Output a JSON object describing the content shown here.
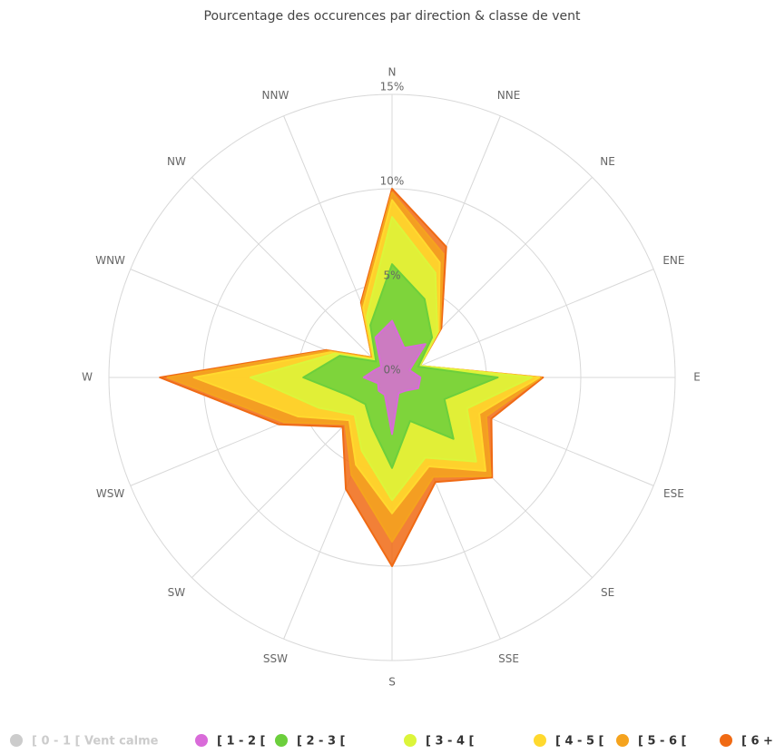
{
  "chart_data": {
    "type": "windrose",
    "title": "Pourcentage des occurences par direction & classe de vent",
    "categories": [
      "N",
      "NNE",
      "NE",
      "ENE",
      "E",
      "ESE",
      "SE",
      "SSE",
      "S",
      "SSW",
      "SW",
      "WSW",
      "W",
      "WNW",
      "NW",
      "NNW"
    ],
    "ylim": [
      0,
      15
    ],
    "yticks": [
      {
        "value": 0,
        "label": "0%"
      },
      {
        "value": 5,
        "label": "5%"
      },
      {
        "value": 10,
        "label": "10%"
      },
      {
        "value": 15,
        "label": "15%"
      }
    ],
    "stacked": true,
    "series": [
      {
        "name": "[ 0 - 1 [ Vent calme",
        "color": "#cccccc",
        "visible": false
      },
      {
        "name": "[ 1 - 2 [",
        "color": "#d96bd9",
        "values": [
          3,
          1.7,
          2.5,
          1,
          1.5,
          1.5,
          1,
          0.9,
          3,
          1,
          1,
          0.8,
          1.5,
          1,
          0.8,
          2.3
        ]
      },
      {
        "name": "[ 2 - 3 [",
        "color": "#6ccf3c",
        "values": [
          3,
          2.8,
          0.5,
          0.5,
          4.1,
          1.5,
          3.6,
          1.6,
          1.8,
          1.8,
          1,
          1.7,
          3.2,
          2,
          0.4,
          0.7
        ]
      },
      {
        "name": "[ 3 - 4 [",
        "color": "#dcf53a",
        "values": [
          2.5,
          1.5,
          0.4,
          0.1,
          1.8,
          1.3,
          1.7,
          2.1,
          1.7,
          1.4,
          0.8,
          1.7,
          2.8,
          0.3,
          0.1,
          0.5
        ]
      },
      {
        "name": "[ 4 - 5 [",
        "color": "#ffd92e",
        "values": [
          0.9,
          0.6,
          0.1,
          0,
          0.4,
          0.7,
          0.7,
          0.5,
          0.7,
          0.8,
          0.4,
          1.2,
          3,
          0.2,
          0.1,
          0.5
        ]
      },
      {
        "name": "[ 5 - 6 [",
        "color": "#f5a31e",
        "values": [
          0.4,
          0.5,
          0.1,
          0,
          0.1,
          0.4,
          0.4,
          0.6,
          1.5,
          0.6,
          0.3,
          0.8,
          1.4,
          0.2,
          0.1,
          0.2
        ]
      },
      {
        "name": "[ 6 +",
        "color": "#f06a14",
        "values": [
          0.2,
          0.4,
          0.1,
          0,
          0.1,
          0.3,
          0.1,
          0.3,
          1.3,
          0.8,
          0.2,
          0.3,
          0.4,
          0.1,
          0,
          0.1
        ]
      }
    ]
  }
}
